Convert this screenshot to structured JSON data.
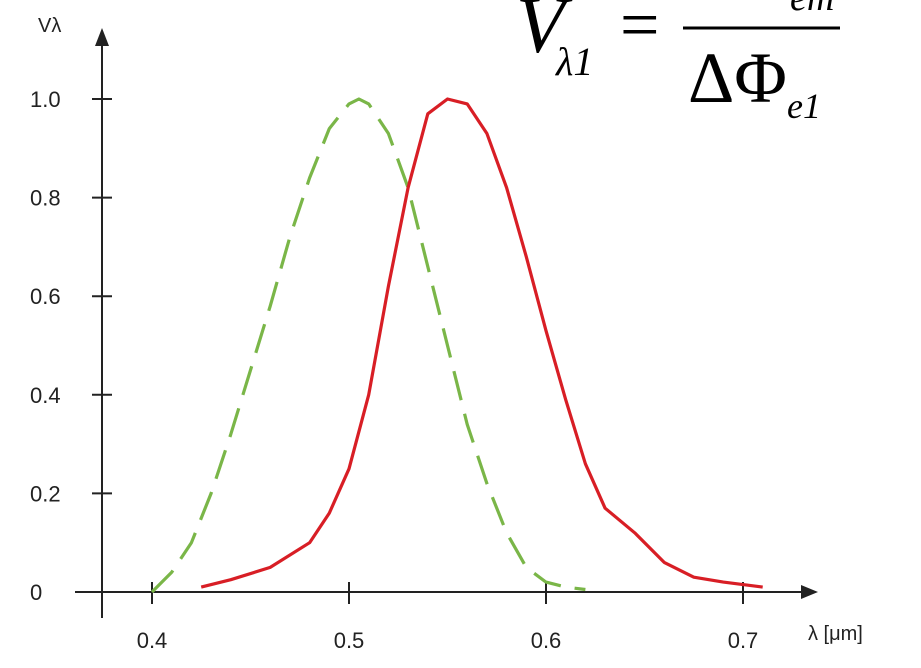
{
  "chart_data": {
    "type": "line",
    "title": "",
    "xlabel": "λ [μm]",
    "ylabel": "Vλ",
    "xlim": [
      0.4,
      0.7
    ],
    "ylim": [
      0,
      1.0
    ],
    "x_ticks": [
      {
        "value": 0.4,
        "label": "0.4"
      },
      {
        "value": 0.5,
        "label": "0.5"
      },
      {
        "value": 0.6,
        "label": "0.6"
      },
      {
        "value": 0.7,
        "label": "0.7"
      }
    ],
    "y_ticks": [
      {
        "value": 0,
        "label": "0"
      },
      {
        "value": 0.2,
        "label": "0.2"
      },
      {
        "value": 0.4,
        "label": "0.4"
      },
      {
        "value": 0.6,
        "label": "0.6"
      },
      {
        "value": 0.8,
        "label": "0.8"
      },
      {
        "value": 1.0,
        "label": "1.0"
      }
    ],
    "grid": false,
    "legend": "none",
    "series": [
      {
        "style": "dashed",
        "color": "#7ab648",
        "points": [
          [
            0.4,
            0.0
          ],
          [
            0.41,
            0.04
          ],
          [
            0.42,
            0.1
          ],
          [
            0.43,
            0.2
          ],
          [
            0.44,
            0.32
          ],
          [
            0.45,
            0.45
          ],
          [
            0.46,
            0.58
          ],
          [
            0.47,
            0.72
          ],
          [
            0.48,
            0.84
          ],
          [
            0.49,
            0.94
          ],
          [
            0.5,
            0.99
          ],
          [
            0.505,
            1.0
          ],
          [
            0.51,
            0.99
          ],
          [
            0.52,
            0.93
          ],
          [
            0.53,
            0.82
          ],
          [
            0.54,
            0.66
          ],
          [
            0.55,
            0.5
          ],
          [
            0.56,
            0.34
          ],
          [
            0.57,
            0.22
          ],
          [
            0.58,
            0.12
          ],
          [
            0.59,
            0.05
          ],
          [
            0.6,
            0.02
          ],
          [
            0.61,
            0.01
          ],
          [
            0.62,
            0.005
          ]
        ]
      },
      {
        "style": "solid",
        "color": "#d81e25",
        "points": [
          [
            0.425,
            0.01
          ],
          [
            0.44,
            0.025
          ],
          [
            0.46,
            0.05
          ],
          [
            0.48,
            0.1
          ],
          [
            0.49,
            0.16
          ],
          [
            0.5,
            0.25
          ],
          [
            0.51,
            0.4
          ],
          [
            0.52,
            0.62
          ],
          [
            0.53,
            0.82
          ],
          [
            0.54,
            0.97
          ],
          [
            0.55,
            1.0
          ],
          [
            0.56,
            0.99
          ],
          [
            0.57,
            0.93
          ],
          [
            0.58,
            0.82
          ],
          [
            0.59,
            0.68
          ],
          [
            0.6,
            0.53
          ],
          [
            0.61,
            0.39
          ],
          [
            0.62,
            0.26
          ],
          [
            0.63,
            0.17
          ],
          [
            0.645,
            0.12
          ],
          [
            0.66,
            0.06
          ],
          [
            0.675,
            0.03
          ],
          [
            0.69,
            0.02
          ],
          [
            0.71,
            0.01
          ]
        ]
      }
    ],
    "formula": {
      "lhs": "V",
      "lhs_subscript": "λ1",
      "equals": "=",
      "numerator_subscript": "em",
      "denominator": "ΔΦ",
      "denominator_subscript": "e1"
    }
  }
}
